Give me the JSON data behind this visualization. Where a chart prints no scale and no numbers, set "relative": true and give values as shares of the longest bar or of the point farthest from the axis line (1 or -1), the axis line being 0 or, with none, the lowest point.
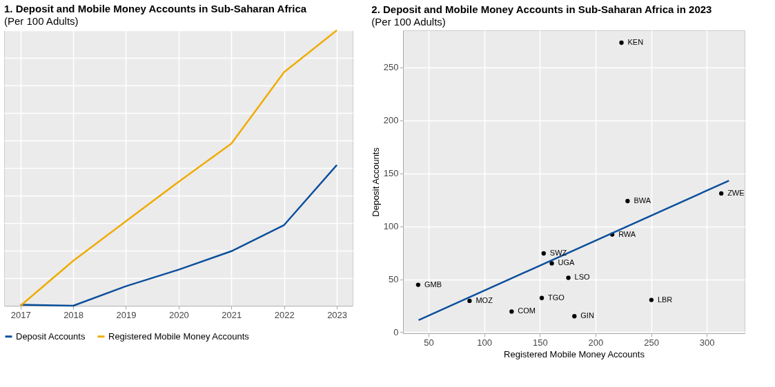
{
  "chart_data": [
    {
      "type": "line",
      "title": "1. Deposit and Mobile Money Accounts in Sub-Saharan Africa",
      "subtitle": "(Per 100 Adults)",
      "x": [
        2017,
        2018,
        2019,
        2020,
        2021,
        2022,
        2023
      ],
      "xlim": [
        2016.69,
        2023.3
      ],
      "xticks": [
        2017,
        2018,
        2019,
        2020,
        2021,
        2022,
        2023
      ],
      "relative": true,
      "grid": true,
      "legend": "bottom",
      "series": [
        {
          "name": "Deposit Accounts",
          "color": "#0b4f9c",
          "values": [
            0.004,
            0,
            0.071,
            0.131,
            0.198,
            0.293,
            0.511
          ]
        },
        {
          "name": "Registered Mobile Money Accounts",
          "color": "#f0ab00",
          "values": [
            0,
            0.163,
            0.307,
            0.45,
            0.589,
            0.848,
            1
          ]
        }
      ]
    },
    {
      "type": "scatter",
      "title": "2. Deposit and Mobile Money Accounts in Sub-Saharan Africa in 2023",
      "subtitle": "(Per 100 Adults)",
      "xlabel": "Registered Mobile Money Accounts",
      "ylabel": "Deposit Accounts",
      "xlim": [
        27,
        334
      ],
      "xticks": [
        50,
        100,
        150,
        200,
        250,
        300
      ],
      "ylim": [
        -1,
        285
      ],
      "yticks": [
        0,
        50,
        100,
        150,
        200,
        250
      ],
      "grid": true,
      "series": [
        {
          "type": "scatter",
          "marker": "circle",
          "color": "#000000",
          "x": [
            223.3,
            228.8,
            313.0,
            215.0,
            153.4,
            160.7,
            175.6,
            40.6,
            151.7,
            250.2,
            86.8,
            124.6,
            181.0
          ],
          "values": [
            273.3,
            123.8,
            131.0,
            92.2,
            74.4,
            65.0,
            51.4,
            44.8,
            32.3,
            30.5,
            29.6,
            19.5,
            15.1
          ]
        },
        {
          "type": "line",
          "marker": "none",
          "color": "#0b4f9c",
          "x": [
            41.0,
            319.9
          ],
          "values": [
            11.4,
            143.1
          ]
        }
      ],
      "annotations": [
        {
          "text": "KEN",
          "x": 223.3,
          "y": 273.3
        },
        {
          "text": "BWA",
          "x": 228.8,
          "y": 123.8
        },
        {
          "text": "ZWE",
          "x": 313.0,
          "y": 131.0
        },
        {
          "text": "RWA",
          "x": 215.0,
          "y": 92.2
        },
        {
          "text": "SWZ",
          "x": 153.4,
          "y": 74.4
        },
        {
          "text": "UGA",
          "x": 160.7,
          "y": 65.0
        },
        {
          "text": "LSO",
          "x": 175.6,
          "y": 51.4
        },
        {
          "text": "GMB",
          "x": 40.6,
          "y": 44.8
        },
        {
          "text": "TGO",
          "x": 151.7,
          "y": 32.3
        },
        {
          "text": "LBR",
          "x": 250.2,
          "y": 30.5
        },
        {
          "text": "MOZ",
          "x": 86.8,
          "y": 29.6
        },
        {
          "text": "COM",
          "x": 124.6,
          "y": 19.5
        },
        {
          "text": "GIN",
          "x": 181.0,
          "y": 15.1
        }
      ]
    }
  ]
}
